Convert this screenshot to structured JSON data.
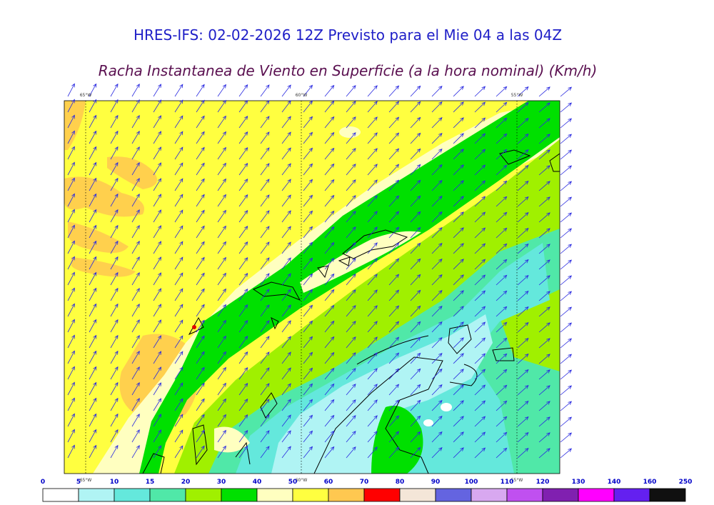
{
  "header": {
    "title": "HRES-IFS: 02-02-2026 12Z Previsto para el Mie 04 a las 04Z",
    "subtitle": "Racha Instantanea de Viento en Superficie (a la hora nominal) (Km/h)"
  },
  "map": {
    "longitude_labels_top": [
      "65°W",
      "60°W",
      "55°W"
    ],
    "longitude_labels_bottom": [
      "65°W",
      "60°W",
      "55°W"
    ]
  },
  "legend": {
    "ticks": [
      0,
      5,
      10,
      15,
      20,
      30,
      40,
      50,
      60,
      70,
      80,
      90,
      100,
      110,
      120,
      130,
      140,
      160,
      250
    ],
    "colors": [
      "#ffffff",
      "#b0f4f4",
      "#64e8dc",
      "#50e8a8",
      "#a0f000",
      "#00e000",
      "#ffffc0",
      "#ffff40",
      "#ffc850",
      "#ff0000",
      "#f4e6d8",
      "#6464e0",
      "#d8a8f0",
      "#c050f0",
      "#8020b0",
      "#ff00ff",
      "#6420f0",
      "#101010"
    ]
  }
}
